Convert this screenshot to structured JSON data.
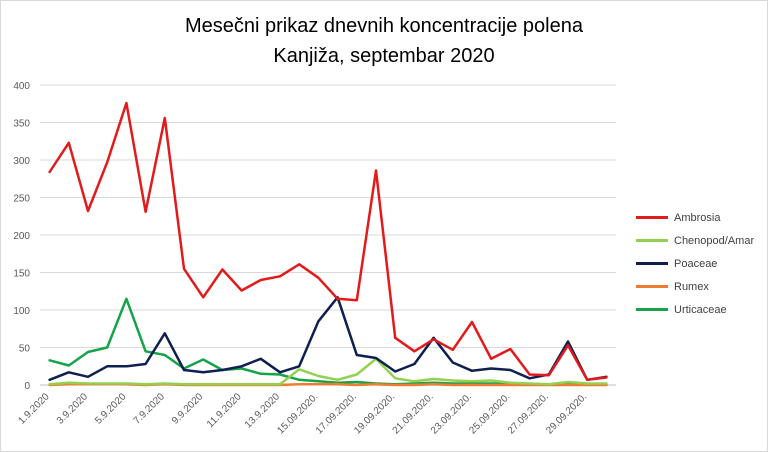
{
  "chart_data": {
    "type": "line",
    "title_line1": "Mesečni prikaz dnevnih koncentracije polena",
    "title_line2": "Kanjiža, septembar 2020",
    "xlabel": "",
    "ylabel": "",
    "ylim": [
      0,
      400
    ],
    "yticks": [
      0,
      50,
      100,
      150,
      200,
      250,
      300,
      350,
      400
    ],
    "grid": "horizontal",
    "legend_position": "right",
    "x": [
      "1.9.2020",
      "2.9.2020",
      "3.9.2020",
      "4.9.2020",
      "5.9.2020",
      "6.9.2020",
      "7.9.2020",
      "8.9.2020",
      "9.9.2020",
      "10.9.2020",
      "11.9.2020",
      "12.9.2020",
      "13.9.2020",
      "14.09.2020.",
      "15.09.2020.",
      "16.09.2020.",
      "17.09.2020.",
      "18.09.2020.",
      "19.09.2020.",
      "20.09.2020.",
      "21.09.2020.",
      "22.09.2020.",
      "23.09.2020.",
      "24.09.2020.",
      "25.09.2020.",
      "26.09.2020.",
      "27.09.2020.",
      "28.09.2020.",
      "29.09.2020.",
      "30.09.2020."
    ],
    "tick_labels": [
      "1.9.2020",
      "3.9.2020",
      "5.9.2020",
      "7.9.2020",
      "9.9.2020",
      "11.9.2020",
      "13.9.2020",
      "15.09.2020.",
      "17.09.2020.",
      "19.09.2020.",
      "21.09.2020.",
      "23.09.2020.",
      "25.09.2020.",
      "27.09.2020.",
      "29.09.2020."
    ],
    "series": [
      {
        "name": "Ambrosia",
        "color": "#e31a1c",
        "values": [
          284,
          323,
          232,
          297,
          376,
          231,
          356,
          155,
          117,
          154,
          126,
          140,
          145,
          161,
          143,
          115,
          113,
          286,
          63,
          45,
          61,
          47,
          84,
          35,
          48,
          14,
          13,
          53,
          7,
          10
        ]
      },
      {
        "name": "Chenopod/Amar",
        "color": "#92d050",
        "values": [
          1,
          3,
          2,
          2,
          2,
          1,
          2,
          1,
          1,
          1,
          1,
          1,
          1,
          21,
          12,
          7,
          14,
          35,
          9,
          5,
          8,
          6,
          5,
          6,
          3,
          2,
          1,
          4,
          2,
          2
        ]
      },
      {
        "name": "Poaceae",
        "color": "#0f1f4f",
        "values": [
          7,
          17,
          11,
          25,
          25,
          28,
          69,
          20,
          17,
          20,
          25,
          35,
          17,
          25,
          85,
          117,
          40,
          36,
          18,
          28,
          63,
          30,
          19,
          22,
          20,
          9,
          14,
          58,
          7,
          11
        ]
      },
      {
        "name": "Rumex",
        "color": "#ed7d31",
        "values": [
          0,
          1,
          1,
          1,
          1,
          0,
          1,
          0,
          0,
          0,
          0,
          0,
          0,
          1,
          1,
          1,
          0,
          1,
          0,
          0,
          1,
          0,
          0,
          0,
          0,
          0,
          0,
          0,
          0,
          0
        ]
      },
      {
        "name": "Urticaceae",
        "color": "#16a34a",
        "values": [
          33,
          26,
          44,
          50,
          115,
          45,
          40,
          22,
          34,
          20,
          22,
          15,
          14,
          7,
          5,
          3,
          4,
          2,
          1,
          2,
          3,
          2,
          2,
          2,
          2,
          1,
          1,
          1,
          1,
          1
        ]
      }
    ]
  }
}
